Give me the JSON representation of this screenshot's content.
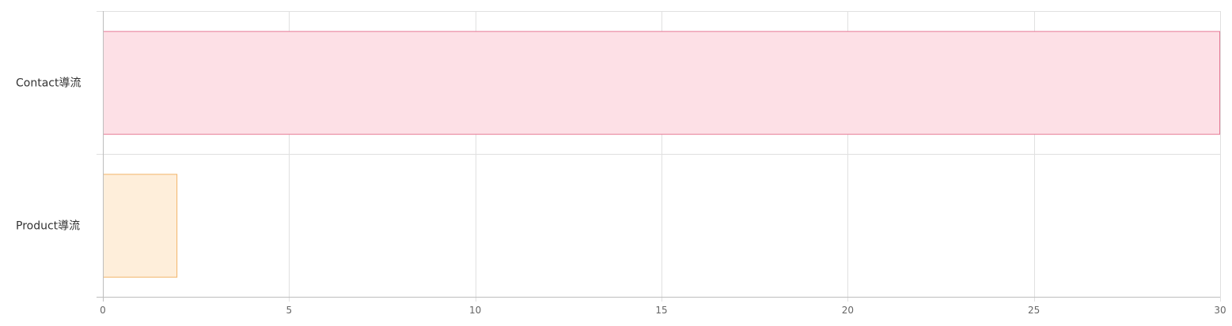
{
  "chart_data": {
    "type": "bar",
    "orientation": "horizontal",
    "categories": [
      "Contact導流",
      "Product導流"
    ],
    "values": [
      30,
      2
    ],
    "xlim": [
      0,
      30
    ],
    "xticks": [
      0,
      5,
      10,
      15,
      20,
      25,
      30
    ],
    "grid": true,
    "legend": "none",
    "bar_fill_colors": [
      "#fde0e6",
      "#feeeda"
    ],
    "bar_border_colors": [
      "#e57a96",
      "#f2b468"
    ]
  }
}
